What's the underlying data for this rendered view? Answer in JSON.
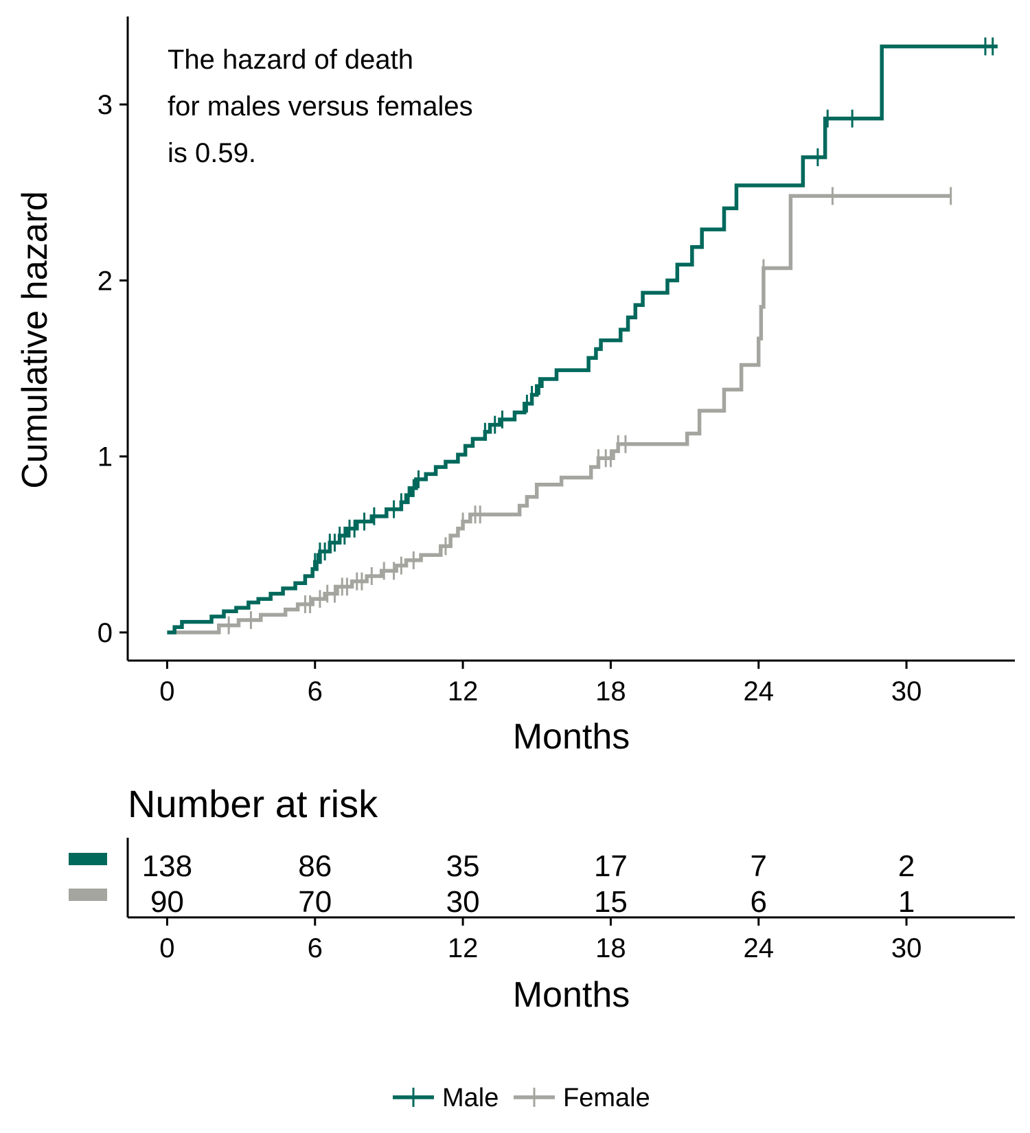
{
  "chart_data": {
    "type": "line",
    "ylabel": "Cumulative hazard",
    "xlabel": "Months",
    "xlim": [
      -1.6,
      34.4
    ],
    "ylim": [
      -0.16,
      3.5
    ],
    "x_ticks": [
      "0",
      "6",
      "12",
      "18",
      "24",
      "30"
    ],
    "y_ticks": [
      "0",
      "1",
      "2",
      "3"
    ],
    "grid": false,
    "annotation": {
      "lines": [
        "The hazard of death",
        "for males versus females",
        "is 0.59."
      ],
      "color": "#009688"
    },
    "legend": {
      "position": "bottom",
      "items": [
        "Male",
        "Female"
      ]
    },
    "series": [
      {
        "name": "Male",
        "color": "#00695C",
        "steps": [
          [
            0,
            0
          ],
          [
            0.3,
            0.03
          ],
          [
            0.6,
            0.06
          ],
          [
            1.8,
            0.09
          ],
          [
            2.3,
            0.12
          ],
          [
            2.8,
            0.14
          ],
          [
            3.3,
            0.17
          ],
          [
            3.7,
            0.19
          ],
          [
            4.2,
            0.22
          ],
          [
            4.7,
            0.25
          ],
          [
            5.2,
            0.28
          ],
          [
            5.6,
            0.32
          ],
          [
            5.9,
            0.36
          ],
          [
            6.0,
            0.4
          ],
          [
            6.2,
            0.46
          ],
          [
            6.6,
            0.51
          ],
          [
            7.0,
            0.55
          ],
          [
            7.3,
            0.59
          ],
          [
            7.7,
            0.63
          ],
          [
            8.3,
            0.66
          ],
          [
            8.9,
            0.7
          ],
          [
            9.5,
            0.74
          ],
          [
            9.7,
            0.78
          ],
          [
            9.9,
            0.82
          ],
          [
            10.1,
            0.87
          ],
          [
            10.5,
            0.9
          ],
          [
            10.9,
            0.94
          ],
          [
            11.3,
            0.97
          ],
          [
            11.8,
            1.01
          ],
          [
            12.1,
            1.06
          ],
          [
            12.4,
            1.1
          ],
          [
            12.9,
            1.14
          ],
          [
            13.1,
            1.18
          ],
          [
            13.5,
            1.21
          ],
          [
            14.1,
            1.25
          ],
          [
            14.5,
            1.3
          ],
          [
            14.8,
            1.35
          ],
          [
            15.0,
            1.4
          ],
          [
            15.2,
            1.44
          ],
          [
            15.8,
            1.49
          ],
          [
            17.1,
            1.56
          ],
          [
            17.4,
            1.61
          ],
          [
            17.6,
            1.66
          ],
          [
            18.4,
            1.72
          ],
          [
            18.7,
            1.79
          ],
          [
            19.0,
            1.86
          ],
          [
            19.3,
            1.93
          ],
          [
            20.3,
            2.0
          ],
          [
            20.7,
            2.09
          ],
          [
            21.3,
            2.19
          ],
          [
            21.7,
            2.29
          ],
          [
            22.6,
            2.41
          ],
          [
            23.1,
            2.54
          ],
          [
            25.8,
            2.7
          ],
          [
            26.7,
            2.92
          ],
          [
            29.0,
            3.33
          ]
        ],
        "end_x": 33.7,
        "censor_x": [
          6.0,
          6.1,
          6.2,
          6.4,
          6.6,
          6.8,
          7.0,
          7.2,
          7.4,
          7.6,
          8.0,
          8.4,
          9.2,
          9.5,
          9.8,
          10.0,
          10.2,
          12.9,
          13.3,
          13.6,
          14.6,
          14.8,
          15.1,
          26.4,
          26.8,
          27.8,
          33.2,
          33.5
        ]
      },
      {
        "name": "Female",
        "color": "#A5A5A0",
        "steps": [
          [
            0,
            0
          ],
          [
            2.1,
            0.04
          ],
          [
            2.9,
            0.07
          ],
          [
            3.8,
            0.1
          ],
          [
            4.8,
            0.13
          ],
          [
            5.3,
            0.16
          ],
          [
            5.9,
            0.19
          ],
          [
            6.4,
            0.22
          ],
          [
            6.9,
            0.26
          ],
          [
            7.5,
            0.29
          ],
          [
            8.1,
            0.32
          ],
          [
            8.7,
            0.35
          ],
          [
            9.3,
            0.38
          ],
          [
            9.7,
            0.41
          ],
          [
            10.3,
            0.44
          ],
          [
            11.1,
            0.49
          ],
          [
            11.5,
            0.55
          ],
          [
            11.8,
            0.59
          ],
          [
            12.0,
            0.63
          ],
          [
            12.3,
            0.67
          ],
          [
            14.3,
            0.72
          ],
          [
            14.6,
            0.77
          ],
          [
            15.0,
            0.84
          ],
          [
            16.0,
            0.88
          ],
          [
            17.2,
            0.94
          ],
          [
            17.5,
            0.99
          ],
          [
            18.1,
            1.03
          ],
          [
            18.3,
            1.07
          ],
          [
            21.1,
            1.13
          ],
          [
            21.6,
            1.26
          ],
          [
            22.6,
            1.38
          ],
          [
            23.3,
            1.52
          ],
          [
            24.0,
            1.67
          ],
          [
            24.1,
            1.85
          ],
          [
            24.2,
            2.07
          ],
          [
            25.3,
            2.48
          ]
        ],
        "end_x": 31.8,
        "censor_x": [
          2.5,
          3.4,
          5.6,
          5.8,
          6.2,
          6.5,
          6.8,
          7.1,
          7.3,
          7.7,
          7.9,
          8.3,
          8.8,
          9.2,
          9.5,
          10.0,
          11.3,
          12.0,
          12.5,
          12.7,
          17.5,
          17.8,
          18.0,
          18.3,
          18.6,
          24.2,
          27.0,
          31.8
        ]
      }
    ]
  },
  "risk_table": {
    "title": "Number at risk",
    "xlabel": "Months",
    "x_ticks": [
      "0",
      "6",
      "12",
      "18",
      "24",
      "30"
    ],
    "rows": [
      {
        "name": "Male",
        "color": "#00695C",
        "values": [
          "138",
          "86",
          "35",
          "17",
          "7",
          "2"
        ]
      },
      {
        "name": "Female",
        "color": "#A5A5A0",
        "values": [
          "90",
          "70",
          "30",
          "15",
          "6",
          "1"
        ]
      }
    ]
  }
}
